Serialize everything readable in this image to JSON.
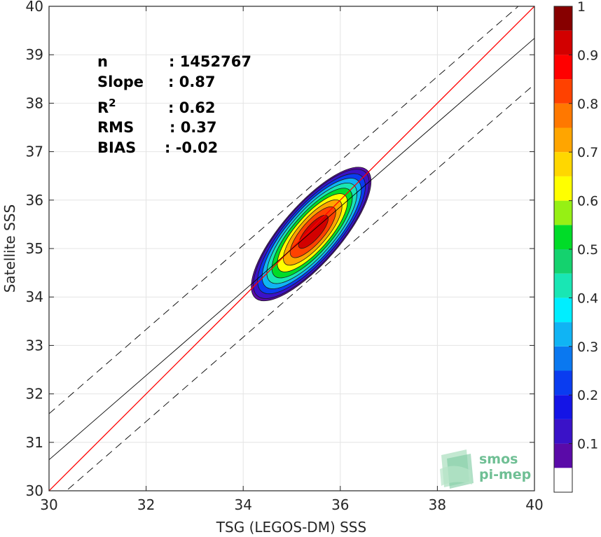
{
  "chart_data": {
    "type": "heatmap",
    "title": "",
    "xlabel": "TSG (LEGOS-DM) SSS",
    "ylabel": "Satellite SSS",
    "xlim": [
      30,
      40
    ],
    "ylim": [
      30,
      40
    ],
    "xticks": [
      "30",
      "32",
      "34",
      "36",
      "38",
      "40"
    ],
    "yticks": [
      "30",
      "31",
      "32",
      "33",
      "34",
      "35",
      "36",
      "37",
      "38",
      "39",
      "40"
    ],
    "grid": true,
    "stats": [
      {
        "label": "n",
        "value": ": 1452767"
      },
      {
        "label": "Slope",
        "value": ": 0.87"
      },
      {
        "label": "R",
        "sup": "2",
        "value": ": 0.62"
      },
      {
        "label": "RMS",
        "value": ": 0.37"
      },
      {
        "label": "BIAS",
        "value": ": -0.02"
      }
    ],
    "identity_line": {
      "slope": 1,
      "intercept": 0,
      "color": "#ff0000"
    },
    "fit_line": {
      "x": [
        30,
        40
      ],
      "y": [
        30.64,
        39.34
      ],
      "color": "#000000"
    },
    "envelope_lines": [
      {
        "x": [
          30,
          40
        ],
        "y": [
          31.59,
          40.29
        ],
        "style": "dashed"
      },
      {
        "x": [
          30,
          40
        ],
        "y": [
          29.69,
          38.39
        ],
        "style": "dashed"
      }
    ],
    "density": {
      "center": [
        35.4,
        35.3
      ],
      "angle_deg": 49,
      "semi_major_units": 1.75,
      "semi_minor_units": 0.6,
      "levels": [
        0.05,
        0.1,
        0.2,
        0.3,
        0.4,
        0.5,
        0.6,
        0.7,
        0.8,
        0.9
      ]
    },
    "colorbar": {
      "min": 0,
      "max": 1,
      "ticks": [
        "0.1",
        "0.2",
        "0.3",
        "0.4",
        "0.5",
        "0.6",
        "0.7",
        "0.8",
        "0.9",
        "1"
      ],
      "bands": [
        {
          "from": 0.0,
          "to": 0.05,
          "color": "#ffffff"
        },
        {
          "from": 0.05,
          "to": 0.1,
          "color": "#5a0aa8"
        },
        {
          "from": 0.1,
          "to": 0.15,
          "color": "#3a12c8"
        },
        {
          "from": 0.15,
          "to": 0.2,
          "color": "#1414e6"
        },
        {
          "from": 0.2,
          "to": 0.25,
          "color": "#0a3cf0"
        },
        {
          "from": 0.25,
          "to": 0.3,
          "color": "#0a78f0"
        },
        {
          "from": 0.3,
          "to": 0.35,
          "color": "#10b4f4"
        },
        {
          "from": 0.35,
          "to": 0.4,
          "color": "#00eeff"
        },
        {
          "from": 0.4,
          "to": 0.45,
          "color": "#19e6b4"
        },
        {
          "from": 0.45,
          "to": 0.5,
          "color": "#14d26e"
        },
        {
          "from": 0.5,
          "to": 0.55,
          "color": "#00dc28"
        },
        {
          "from": 0.55,
          "to": 0.6,
          "color": "#96f014"
        },
        {
          "from": 0.6,
          "to": 0.65,
          "color": "#ffff00"
        },
        {
          "from": 0.65,
          "to": 0.7,
          "color": "#ffd700"
        },
        {
          "from": 0.7,
          "to": 0.75,
          "color": "#ffa500"
        },
        {
          "from": 0.75,
          "to": 0.8,
          "color": "#ff7800"
        },
        {
          "from": 0.8,
          "to": 0.85,
          "color": "#ff4100"
        },
        {
          "from": 0.85,
          "to": 0.9,
          "color": "#ff0000"
        },
        {
          "from": 0.9,
          "to": 0.95,
          "color": "#d20000"
        },
        {
          "from": 0.95,
          "to": 1.0,
          "color": "#870000"
        }
      ]
    }
  },
  "logo": {
    "line1": "smos",
    "line2": "pi-mep"
  }
}
